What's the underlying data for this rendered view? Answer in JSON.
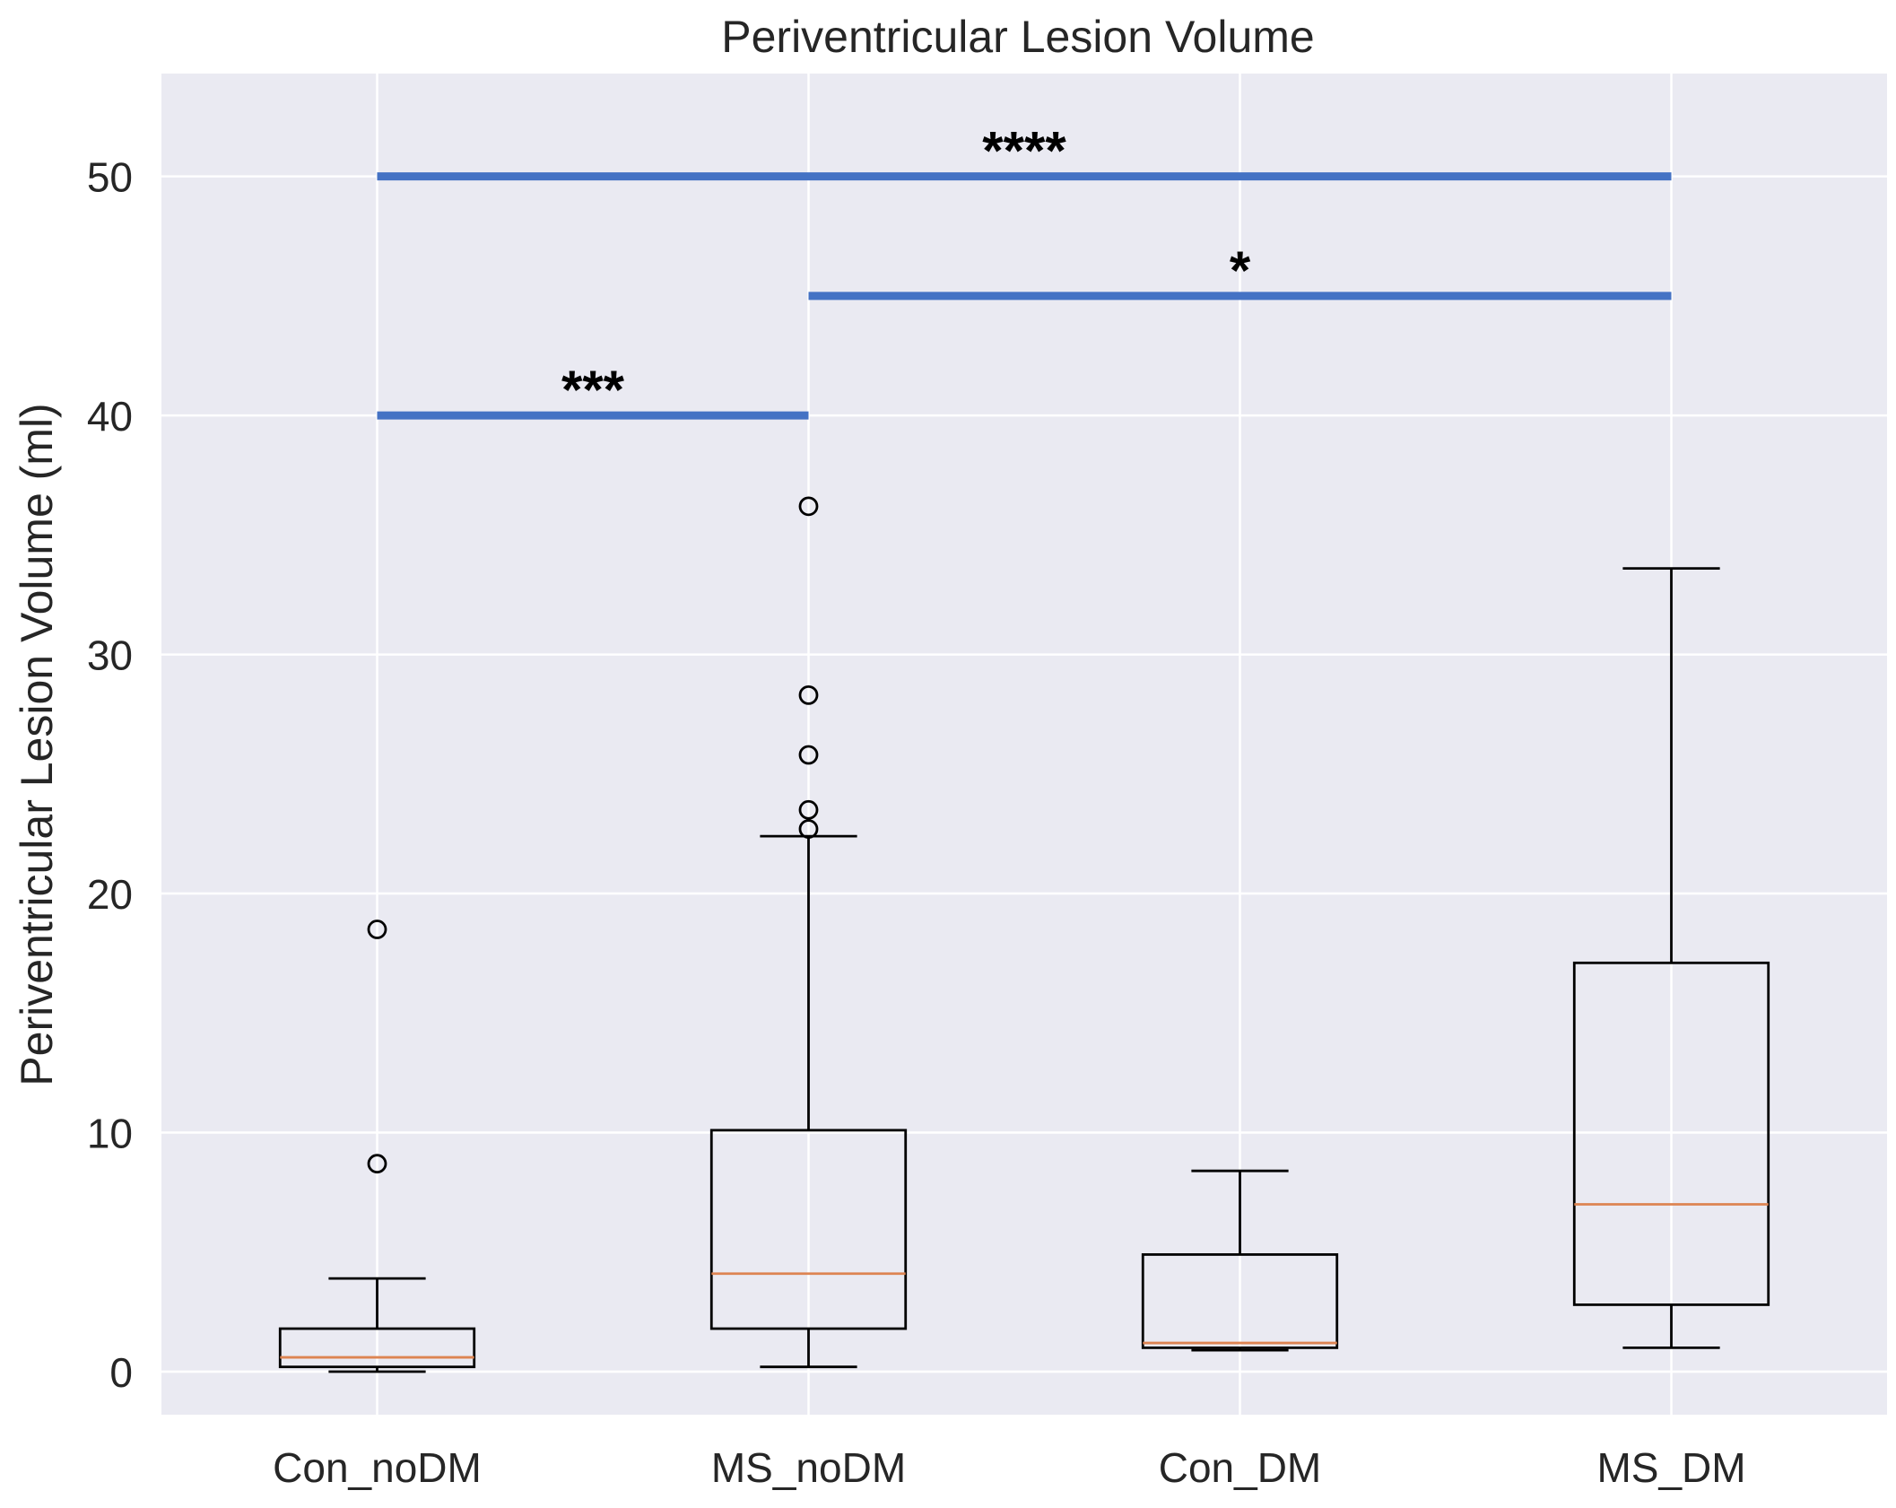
{
  "chart_data": {
    "type": "box",
    "title": "Periventricular Lesion Volume",
    "xlabel": "",
    "ylabel": "Periventricular Lesion Volume (ml)",
    "ylim": [
      -1.8,
      54.3
    ],
    "yticks": [
      0,
      10,
      20,
      30,
      40,
      50
    ],
    "grid": true,
    "categories": [
      "Con_noDM",
      "MS_noDM",
      "Con_DM",
      "MS_DM"
    ],
    "boxes": [
      {
        "name": "Con_noDM",
        "whislo": 0.0,
        "q1": 0.2,
        "median": 0.6,
        "q3": 1.8,
        "whishi": 3.9,
        "fliers": [
          8.7,
          18.5
        ]
      },
      {
        "name": "MS_noDM",
        "whislo": 0.2,
        "q1": 1.8,
        "median": 4.1,
        "q3": 10.1,
        "whishi": 22.4,
        "fliers": [
          22.7,
          23.5,
          25.8,
          28.3,
          36.2
        ]
      },
      {
        "name": "Con_DM",
        "whislo": 0.9,
        "q1": 1.0,
        "median": 1.2,
        "q3": 4.9,
        "whishi": 8.4,
        "fliers": []
      },
      {
        "name": "MS_DM",
        "whislo": 1.0,
        "q1": 2.8,
        "median": 7.0,
        "q3": 17.1,
        "whishi": 33.6,
        "fliers": []
      }
    ],
    "significance": [
      {
        "from": "Con_noDM",
        "to": "MS_noDM",
        "y": 40,
        "label": "***"
      },
      {
        "from": "MS_noDM",
        "to": "MS_DM",
        "y": 45,
        "label": "*"
      },
      {
        "from": "Con_noDM",
        "to": "MS_DM",
        "y": 50,
        "label": "****"
      }
    ],
    "colors": {
      "background": "#eaeaf2",
      "grid": "#ffffff",
      "box": "#000000",
      "median": "#dd8452",
      "significance": "#4472c4"
    }
  }
}
